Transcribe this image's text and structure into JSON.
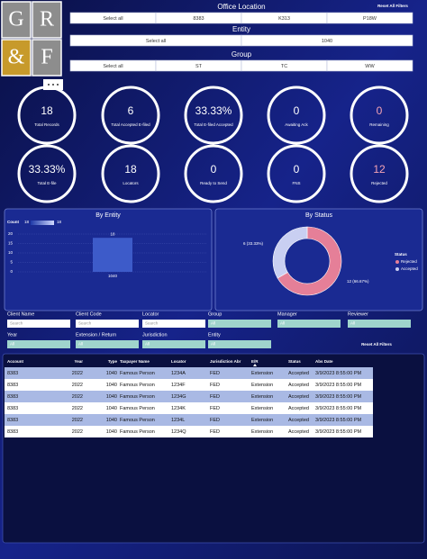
{
  "logo": {
    "letters": [
      "G",
      "R",
      "&",
      "F"
    ]
  },
  "slicers": [
    {
      "title": "Office Location",
      "options": [
        "Select all",
        "8383",
        "K313",
        "P18W"
      ]
    },
    {
      "title": "Entity",
      "options": [
        "Select all",
        "1040"
      ]
    },
    {
      "title": "Group",
      "options": [
        "Select all",
        "ST",
        "TC",
        "WW"
      ]
    }
  ],
  "reset_top": "Reset All Filters",
  "kpis": [
    {
      "value": "18",
      "label": "Total Records"
    },
    {
      "value": "6",
      "label": "Total Accepted E-filed"
    },
    {
      "value": "33.33%",
      "label": "Total E-filed Accepted"
    },
    {
      "value": "0",
      "label": "Awaiting Ack"
    },
    {
      "value": "0",
      "label": "Remaining",
      "color": "#f4a3b5"
    },
    {
      "value": "33.33%",
      "label": "Total E-file"
    },
    {
      "value": "18",
      "label": "Locators"
    },
    {
      "value": "0",
      "label": "Ready to Send"
    },
    {
      "value": "0",
      "label": "FNS"
    },
    {
      "value": "12",
      "label": "Rejected",
      "color": "#f4a3b5"
    }
  ],
  "chart_data": [
    {
      "type": "bar",
      "title": "By Entity",
      "categories": [
        "1040"
      ],
      "values": [
        18
      ],
      "color": "#3d5bc9",
      "color_scale": {
        "title": "Count",
        "min": 18,
        "max": 18
      },
      "ylim": [
        0,
        20
      ],
      "yticks": [
        0,
        5,
        10,
        15,
        20
      ],
      "grid": true
    },
    {
      "type": "pie",
      "title": "By Status",
      "donut": true,
      "categories": [
        "Rejected",
        "Accepted"
      ],
      "values": [
        12,
        6
      ],
      "value_labels": [
        "12 (66.67%)",
        "6 (33.33%)"
      ],
      "colors": [
        "#e57f98",
        "#c9cff2"
      ],
      "legend_title": "Status"
    }
  ],
  "filters": [
    {
      "label": "Client Name",
      "value": "Search"
    },
    {
      "label": "Client Code",
      "value": "Search"
    },
    {
      "label": "Locator",
      "value": "Search"
    },
    {
      "label": "Group",
      "value": "All"
    },
    {
      "label": "Manager",
      "value": "All"
    },
    {
      "label": "Reviewer",
      "value": "All"
    },
    {
      "label": "Year",
      "value": "All"
    },
    {
      "label": "Extension / Return",
      "value": "All"
    },
    {
      "label": "Jurisdiction",
      "value": "All"
    },
    {
      "label": "Entity",
      "value": "All"
    }
  ],
  "reset_bottom": "Reset All Filters",
  "table": {
    "columns": [
      "Account",
      "Year",
      "Type",
      "Taxpayer Name",
      "Locator",
      "Jurisdiction Abr",
      "E/R",
      "Status",
      "Abs Date"
    ],
    "rows": [
      [
        "8383",
        "2022",
        "1040",
        "Famous Person",
        "1234A",
        "FED",
        "Extension",
        "Accepted",
        "3/9/2023 8:55:00 PM"
      ],
      [
        "8383",
        "2022",
        "1040",
        "Famous Person",
        "1234F",
        "FED",
        "Extension",
        "Accepted",
        "3/9/2023 8:55:00 PM"
      ],
      [
        "8383",
        "2022",
        "1040",
        "Famous Person",
        "1234G",
        "FED",
        "Extension",
        "Accepted",
        "3/9/2023 8:55:00 PM"
      ],
      [
        "8383",
        "2022",
        "1040",
        "Famous Person",
        "1234K",
        "FED",
        "Extension",
        "Accepted",
        "3/9/2023 8:55:00 PM"
      ],
      [
        "8383",
        "2022",
        "1040",
        "Famous Person",
        "1234L",
        "FED",
        "Extension",
        "Accepted",
        "3/9/2023 8:55:00 PM"
      ],
      [
        "8383",
        "2022",
        "1040",
        "Famous Person",
        "1234Q",
        "FED",
        "Extension",
        "Accepted",
        "3/9/2023 8:55:00 PM"
      ]
    ]
  }
}
